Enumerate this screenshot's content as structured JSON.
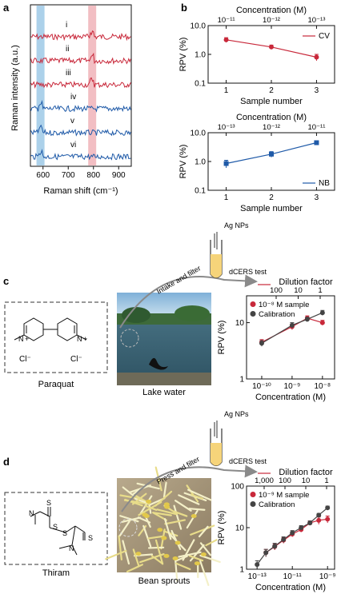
{
  "colors": {
    "red": "#c8283a",
    "blue": "#1f5aa8",
    "dark": "#444444",
    "band_blue": "#9ec9e6",
    "band_red": "#f0b3b8",
    "tube_fill": "#f6d47a"
  },
  "panel_letters": {
    "a": "a",
    "b": "b",
    "c": "c",
    "d": "d"
  },
  "panel_a": {
    "ylabel": "Raman intensity (a.u.)",
    "xlabel": "Raman shift (cm⁻¹)",
    "xticks": [
      "600",
      "700",
      "800",
      "900"
    ],
    "xlim": [
      550,
      950
    ],
    "bands": [
      {
        "center": 590,
        "color": "blue"
      },
      {
        "center": 795,
        "color": "red"
      }
    ],
    "traces": [
      {
        "label": "i",
        "color": "red"
      },
      {
        "label": "ii",
        "color": "red"
      },
      {
        "label": "iii",
        "color": "red"
      },
      {
        "label": "iv",
        "color": "blue"
      },
      {
        "label": "v",
        "color": "blue"
      },
      {
        "label": "vi",
        "color": "blue"
      }
    ]
  },
  "panel_c": {
    "molecule": "Paraquat",
    "photo": "Lake water",
    "ions": [
      "N",
      "+",
      "Cl⁻"
    ],
    "tube_label": "Ag NPs",
    "arrow_label": "Intake and filter",
    "test_label": "dCERS test"
  },
  "panel_d": {
    "molecule": "Thiram",
    "photo": "Bean sprouts",
    "tube_label": "Ag NPs",
    "arrow_label": "Press and filter",
    "test_label": "dCERS test",
    "atoms": [
      "N",
      "S",
      "S",
      "S",
      "S",
      "N"
    ]
  },
  "chart_data": [
    {
      "id": "b-top",
      "type": "line",
      "top_axis_label": "Concentration (M)",
      "top_ticks": [
        "10⁻¹¹",
        "10⁻¹²",
        "10⁻¹³"
      ],
      "xlabel": "Sample number",
      "ylabel": "RPV (%)",
      "xticks": [
        "1",
        "2",
        "3"
      ],
      "yticks": [
        "0.1",
        "1.0",
        "10.0"
      ],
      "ylim": [
        0.1,
        10
      ],
      "yscale": "log",
      "legend": "top-right",
      "series": [
        {
          "name": "CV",
          "color": "red",
          "x": [
            1,
            2,
            3
          ],
          "y": [
            3.2,
            1.8,
            0.8
          ],
          "err": [
            0.6,
            0.3,
            0.2
          ]
        }
      ]
    },
    {
      "id": "b-bottom",
      "type": "line",
      "top_axis_label": "Concentration (M)",
      "top_ticks": [
        "10⁻¹³",
        "10⁻¹²",
        "10⁻¹¹"
      ],
      "xlabel": "Sample number",
      "ylabel": "RPV (%)",
      "xticks": [
        "1",
        "2",
        "3"
      ],
      "yticks": [
        "0.1",
        "1.0",
        "10.0"
      ],
      "ylim": [
        0.1,
        10
      ],
      "yscale": "log",
      "legend": "bottom-right",
      "series": [
        {
          "name": "NB",
          "color": "blue",
          "x": [
            1,
            2,
            3
          ],
          "y": [
            0.85,
            1.8,
            4.5
          ],
          "err": [
            0.25,
            0.4,
            0.7
          ]
        }
      ]
    },
    {
      "id": "c",
      "type": "line",
      "top_axis_label": "Dilution factor",
      "top_ticks": [
        "100",
        "10",
        "1"
      ],
      "xlabel": "Concentration (M)",
      "ylabel": "RPV (%)",
      "xticks": [
        "10⁻¹⁰",
        "10⁻⁹",
        "10⁻⁸"
      ],
      "xlog": [
        -10,
        -9,
        -8
      ],
      "xlim_log": [
        -10.5,
        -7.6
      ],
      "yticks": [
        "1",
        "10"
      ],
      "ylim": [
        1,
        30
      ],
      "yscale": "log",
      "legend": "top-left",
      "series": [
        {
          "name": "10⁻⁸ M sample",
          "color": "red",
          "xlog": [
            -10,
            -9,
            -8.5,
            -8
          ],
          "y": [
            4.5,
            8.5,
            12,
            10
          ],
          "err": [
            0.5,
            1,
            1.2,
            1
          ]
        },
        {
          "name": "Calibration",
          "color": "dark",
          "xlog": [
            -10,
            -9,
            -8.5,
            -8
          ],
          "y": [
            4.3,
            9.0,
            11.5,
            15
          ],
          "err": [
            0.5,
            1,
            1,
            1.5
          ]
        }
      ]
    },
    {
      "id": "d",
      "type": "line",
      "top_axis_label": "Dilution factor",
      "top_ticks": [
        "1,000",
        "100",
        "10",
        "1"
      ],
      "xlabel": "Concentration (M)",
      "ylabel": "RPV (%)",
      "xticks": [
        "10⁻¹³",
        "10⁻¹¹",
        "10⁻⁹"
      ],
      "xlog": [
        -13,
        -11,
        -9
      ],
      "xlim_log": [
        -13.6,
        -8.6
      ],
      "yticks": [
        "1",
        "10",
        "100"
      ],
      "ylim": [
        1,
        100
      ],
      "yscale": "log",
      "legend": "top-left",
      "series": [
        {
          "name": "10⁻⁹ M sample",
          "color": "red",
          "xlog": [
            -12.5,
            -12,
            -11.5,
            -11,
            -10.5,
            -10,
            -9.5,
            -9
          ],
          "y": [
            2.5,
            3.5,
            5,
            7,
            9,
            13,
            15,
            16
          ],
          "err": [
            0.5,
            0.6,
            0.8,
            1,
            1.2,
            1.5,
            3,
            3
          ]
        },
        {
          "name": "Calibration",
          "color": "dark",
          "xlog": [
            -13,
            -12.5,
            -12,
            -11.5,
            -11,
            -10.5,
            -10,
            -9.5,
            -9
          ],
          "y": [
            1.3,
            2.5,
            3.6,
            5.2,
            7.5,
            10,
            13,
            20,
            30
          ],
          "err": [
            0.3,
            0.5,
            0.6,
            0.8,
            1,
            1.2,
            1.5,
            2,
            3
          ]
        }
      ]
    }
  ]
}
